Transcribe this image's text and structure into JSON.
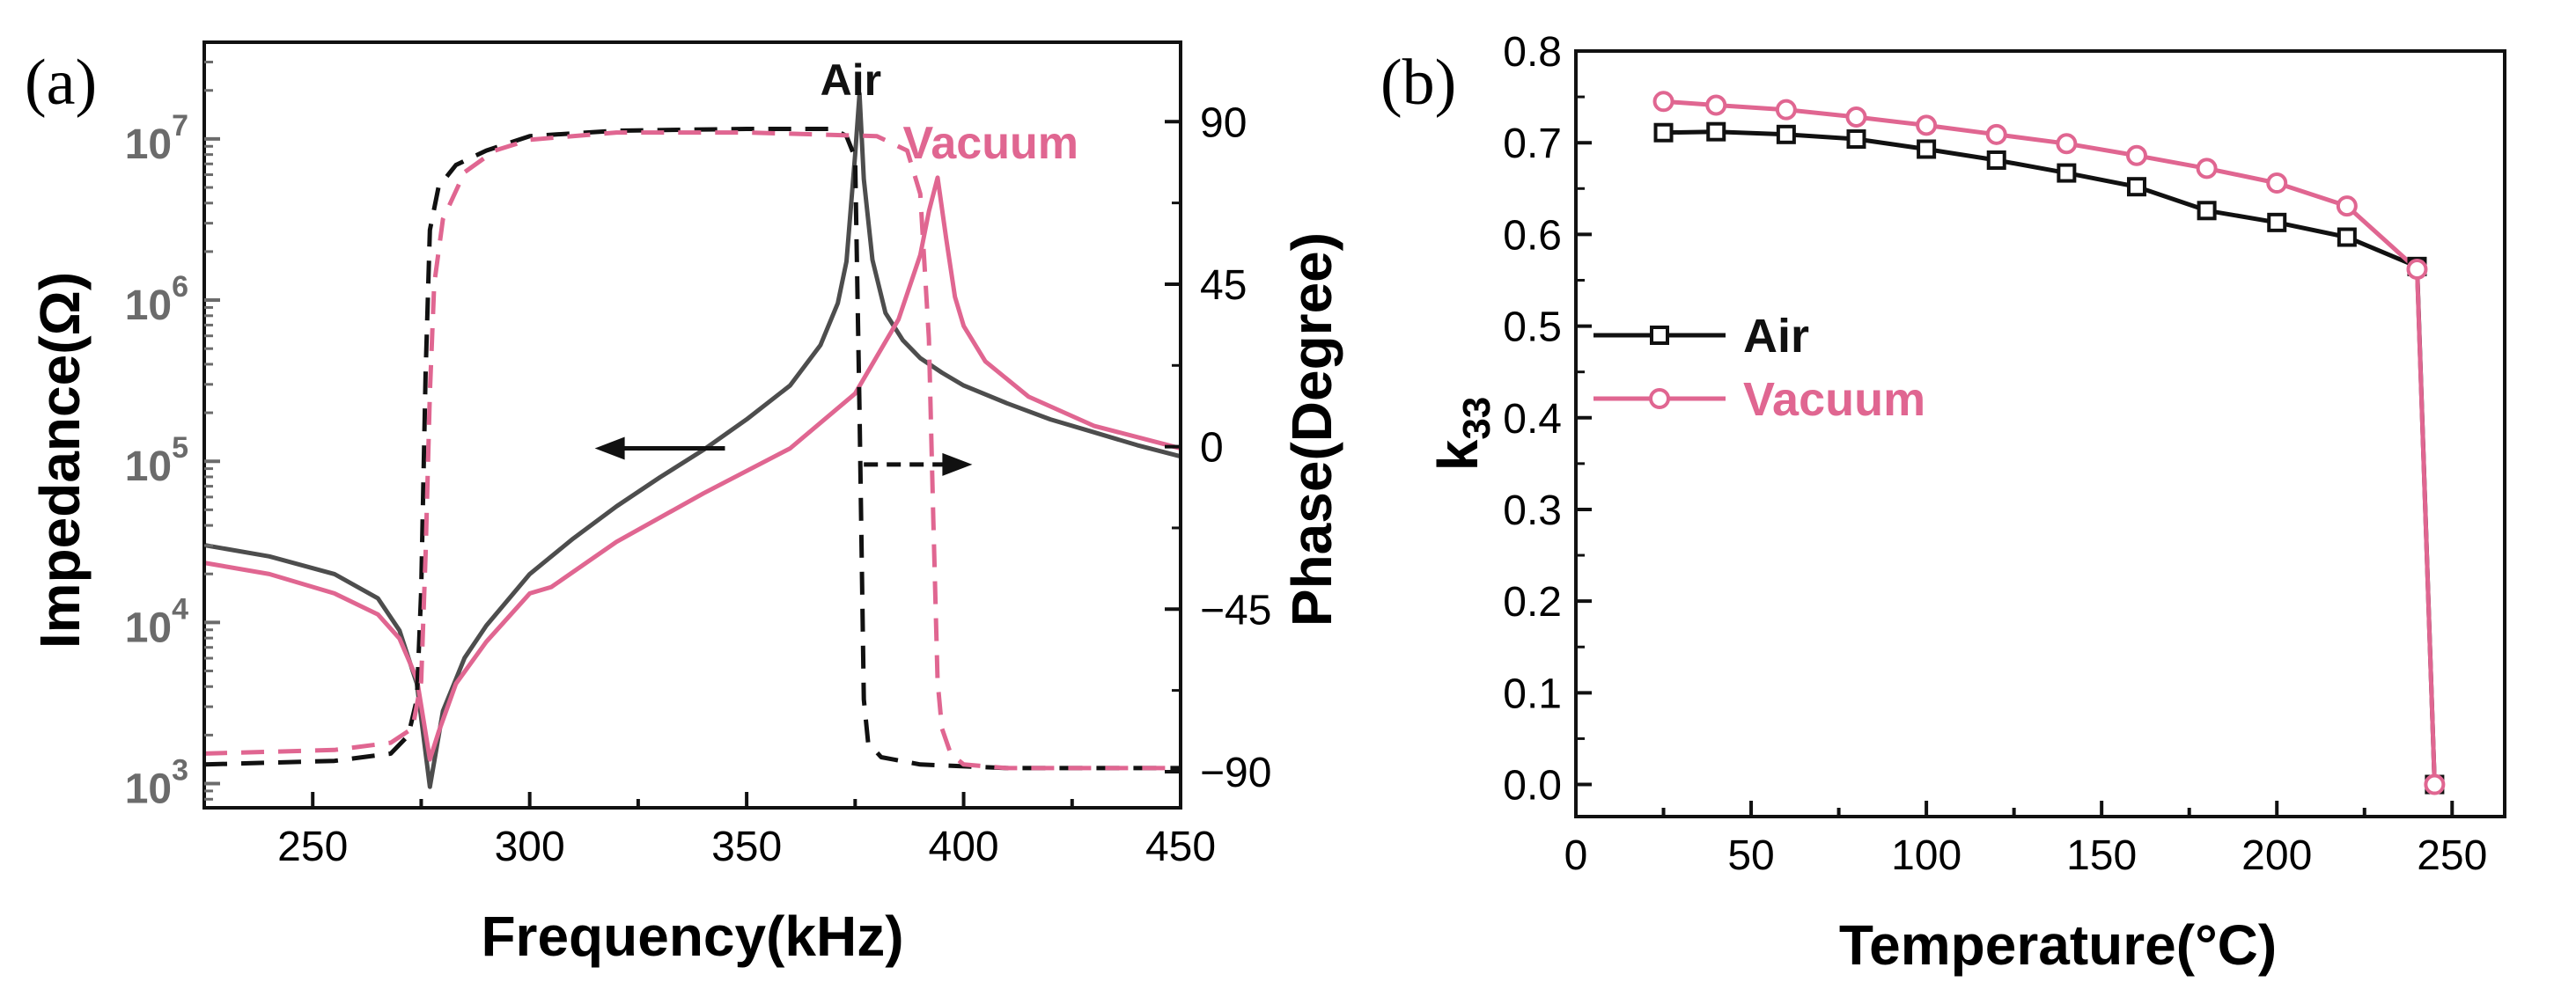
{
  "colors": {
    "air": "#4d4d4d",
    "air_dashed": "#111111",
    "vacuum": "#e06691",
    "axis": "#111111",
    "grey_axis": "#6b6b6b"
  },
  "chart_data": [
    {
      "panel_label": "(a)",
      "type": "line",
      "xlabel": "Frequency(kHz)",
      "ylabel_left": "Impedance(Ω)",
      "ylabel_right": "Phase(Degree)",
      "xlim": [
        225,
        450
      ],
      "xticks": [
        250,
        300,
        350,
        400,
        450
      ],
      "ylim_left_log10": [
        2.85,
        7.6
      ],
      "yticks_left": [
        {
          "exp": 3,
          "base": "10",
          "sup": "3"
        },
        {
          "exp": 4,
          "base": "10",
          "sup": "4"
        },
        {
          "exp": 5,
          "base": "10",
          "sup": "5"
        },
        {
          "exp": 6,
          "base": "10",
          "sup": "6"
        },
        {
          "exp": 7,
          "base": "10",
          "sup": "7"
        }
      ],
      "ylim_right": [
        -100,
        112
      ],
      "yticks_right": [
        {
          "v": 90,
          "label": "90"
        },
        {
          "v": 45,
          "label": "45"
        },
        {
          "v": 0,
          "label": "0"
        },
        {
          "v": -45,
          "label": "−45"
        },
        {
          "v": -90,
          "label": "−90"
        }
      ],
      "annotations": {
        "air": "Air",
        "vacuum": "Vacuum"
      },
      "arrows": [
        {
          "from_x": 345,
          "to_x": 315,
          "axis": "left",
          "y_log10": 5.08,
          "style": "solid"
        },
        {
          "from_x": 377,
          "to_x": 402,
          "axis": "left",
          "y_log10": 4.98,
          "style": "dashed"
        }
      ],
      "series": [
        {
          "name": "Air impedance",
          "axis": "left",
          "color_key": "air",
          "dash": false,
          "x": [
            225,
            240,
            255,
            265,
            270,
            274,
            277,
            280,
            285,
            290,
            300,
            310,
            320,
            330,
            340,
            350,
            360,
            367,
            371,
            373,
            375,
            376,
            377,
            379,
            382,
            386,
            390,
            395,
            400,
            410,
            420,
            430,
            440,
            450
          ],
          "y_log10": [
            4.48,
            4.41,
            4.3,
            4.15,
            3.95,
            3.62,
            2.98,
            3.45,
            3.78,
            3.98,
            4.3,
            4.52,
            4.72,
            4.9,
            5.07,
            5.26,
            5.47,
            5.72,
            5.98,
            6.24,
            6.9,
            7.28,
            6.75,
            6.25,
            5.92,
            5.75,
            5.64,
            5.55,
            5.47,
            5.36,
            5.26,
            5.18,
            5.1,
            5.03
          ]
        },
        {
          "name": "Vacuum impedance",
          "axis": "left",
          "color_key": "vacuum",
          "dash": false,
          "x": [
            225,
            240,
            255,
            265,
            270,
            274,
            277,
            279,
            283,
            290,
            300,
            305,
            320,
            340,
            360,
            375,
            385,
            390,
            392,
            394,
            396,
            398,
            400,
            405,
            415,
            430,
            450
          ],
          "y_log10": [
            4.37,
            4.3,
            4.18,
            4.05,
            3.9,
            3.65,
            3.15,
            3.32,
            3.62,
            3.88,
            4.18,
            4.22,
            4.5,
            4.8,
            5.08,
            5.42,
            5.88,
            6.28,
            6.55,
            6.76,
            6.38,
            6.02,
            5.84,
            5.62,
            5.4,
            5.22,
            5.08
          ]
        },
        {
          "name": "Air phase",
          "axis": "right",
          "color_key": "air_dashed",
          "dash": true,
          "x": [
            225,
            255,
            268,
            272,
            274,
            275,
            276,
            277,
            279,
            283,
            290,
            300,
            320,
            350,
            370,
            373,
            375,
            376,
            377,
            378,
            381,
            390,
            410,
            430,
            450
          ],
          "y": [
            -88,
            -87,
            -85,
            -80,
            -70,
            -40,
            20,
            60,
            72,
            78,
            82,
            86,
            87.5,
            88,
            88,
            86,
            80,
            10,
            -70,
            -82,
            -86,
            -88,
            -89,
            -89,
            -89
          ]
        },
        {
          "name": "Vacuum phase",
          "axis": "right",
          "color_key": "vacuum",
          "dash": true,
          "x": [
            225,
            255,
            268,
            273,
            275,
            276,
            277,
            278,
            280,
            285,
            292,
            300,
            320,
            350,
            380,
            387,
            390,
            392,
            393,
            394,
            395,
            397,
            400,
            410,
            430,
            450
          ],
          "y": [
            -85,
            -84,
            -82,
            -78,
            -65,
            -30,
            15,
            45,
            63,
            76,
            82,
            85,
            87,
            87,
            86,
            82,
            70,
            30,
            -20,
            -65,
            -78,
            -85,
            -88,
            -89,
            -89,
            -89
          ]
        }
      ]
    },
    {
      "panel_label": "(b)",
      "type": "line",
      "xlabel": "Temperature(°C)",
      "ylabel_main": "k",
      "ylabel_sub": "33",
      "xlim": [
        0,
        265
      ],
      "xticks": [
        0,
        50,
        100,
        150,
        200,
        250
      ],
      "ylim": [
        -0.035,
        0.8
      ],
      "yticks": [
        0.0,
        0.1,
        0.2,
        0.3,
        0.4,
        0.5,
        0.6,
        0.7,
        0.8
      ],
      "ytick_labels": [
        "0.0",
        "0.1",
        "0.2",
        "0.3",
        "0.4",
        "0.5",
        "0.6",
        "0.7",
        "0.8"
      ],
      "legend_position": "middle-left",
      "series": [
        {
          "name": "Air",
          "color_key": "axis",
          "marker": "square",
          "x": [
            25,
            40,
            60,
            80,
            100,
            120,
            140,
            160,
            180,
            200,
            220,
            240,
            245
          ],
          "y": [
            0.711,
            0.712,
            0.709,
            0.704,
            0.693,
            0.681,
            0.667,
            0.652,
            0.626,
            0.613,
            0.597,
            0.565,
            0.0
          ]
        },
        {
          "name": "Vacuum",
          "color_key": "vacuum",
          "marker": "circle",
          "x": [
            25,
            40,
            60,
            80,
            100,
            120,
            140,
            160,
            180,
            200,
            220,
            240,
            245
          ],
          "y": [
            0.745,
            0.741,
            0.736,
            0.728,
            0.719,
            0.709,
            0.699,
            0.686,
            0.672,
            0.656,
            0.631,
            0.562,
            0.0
          ]
        }
      ]
    }
  ]
}
